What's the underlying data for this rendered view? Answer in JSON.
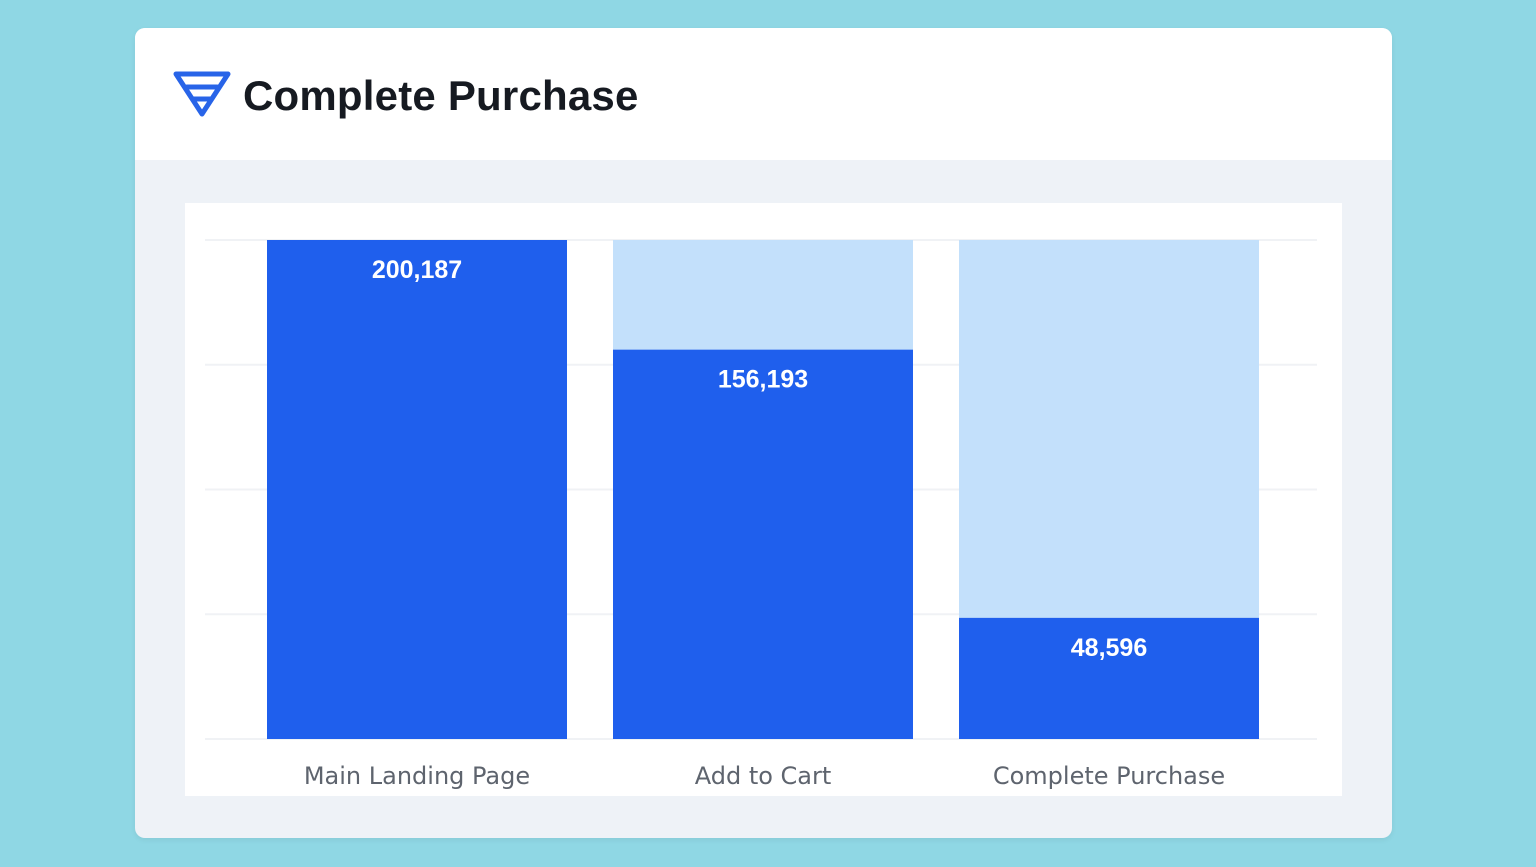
{
  "header": {
    "title": "Complete Purchase",
    "icon": "funnel-icon"
  },
  "colors": {
    "background": "#8fd7e4",
    "bar_fill": "#1f5fed",
    "bar_track": "#c3e0fb",
    "gridline": "#f0f2f5",
    "icon": "#2864e8"
  },
  "chart_data": {
    "type": "bar",
    "categories": [
      "Main Landing Page",
      "Add to Cart",
      "Complete Purchase"
    ],
    "values": [
      200187,
      156193,
      48596
    ],
    "value_labels": [
      "200,187",
      "156,193",
      "48,596"
    ],
    "ylim": [
      0,
      200187
    ],
    "grid": true,
    "legend": "none"
  }
}
